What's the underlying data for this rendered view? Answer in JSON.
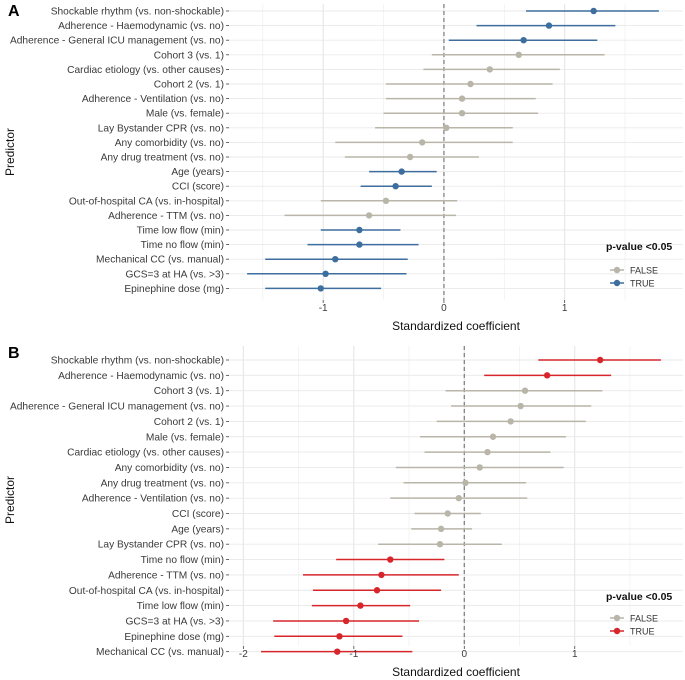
{
  "chart_data": [
    {
      "panel": "A",
      "type": "scatter",
      "subtype": "forest-plot",
      "xlabel": "Standardized coefficient",
      "ylabel": "Predictor",
      "xlim": [
        -1.78,
        1.98
      ],
      "xticks": [
        -1,
        0,
        1
      ],
      "legend": {
        "title": "p-value <0.05",
        "entries": [
          "FALSE",
          "TRUE"
        ],
        "colors": [
          "#b9b5a9",
          "#3d6e9e"
        ],
        "position": "bottom-right"
      },
      "rows": [
        {
          "label": "Shockable rhythm (vs. non-shockable)",
          "est": 1.24,
          "lo": 0.68,
          "hi": 1.78,
          "sig": true
        },
        {
          "label": "Adherence - Haemodynamic (vs. no)",
          "est": 0.87,
          "lo": 0.27,
          "hi": 1.42,
          "sig": true
        },
        {
          "label": "Adherence - General ICU management (vs. no)",
          "est": 0.66,
          "lo": 0.04,
          "hi": 1.27,
          "sig": true
        },
        {
          "label": "Cohort 3 (vs. 1)",
          "est": 0.62,
          "lo": -0.1,
          "hi": 1.33,
          "sig": false
        },
        {
          "label": "Cardiac etiology (vs. other causes)",
          "est": 0.38,
          "lo": -0.17,
          "hi": 0.96,
          "sig": false
        },
        {
          "label": "Cohort 2 (vs. 1)",
          "est": 0.22,
          "lo": -0.48,
          "hi": 0.9,
          "sig": false
        },
        {
          "label": "Adherence - Ventilation (vs. no)",
          "est": 0.15,
          "lo": -0.48,
          "hi": 0.76,
          "sig": false
        },
        {
          "label": "Male (vs. female)",
          "est": 0.15,
          "lo": -0.5,
          "hi": 0.78,
          "sig": false
        },
        {
          "label": "Lay Bystander CPR (vs. no)",
          "est": 0.02,
          "lo": -0.57,
          "hi": 0.57,
          "sig": false
        },
        {
          "label": "Any comorbidity (vs. no)",
          "est": -0.18,
          "lo": -0.9,
          "hi": 0.57,
          "sig": false
        },
        {
          "label": "Any drug treatment (vs. no)",
          "est": -0.28,
          "lo": -0.82,
          "hi": 0.29,
          "sig": false
        },
        {
          "label": "Age (years)",
          "est": -0.35,
          "lo": -0.62,
          "hi": -0.06,
          "sig": true
        },
        {
          "label": "CCI (score)",
          "est": -0.4,
          "lo": -0.69,
          "hi": -0.1,
          "sig": true
        },
        {
          "label": "Out-of-hospital CA (vs. in-hospital)",
          "est": -0.48,
          "lo": -1.02,
          "hi": 0.11,
          "sig": false
        },
        {
          "label": "Adherence - TTM (vs. no)",
          "est": -0.62,
          "lo": -1.32,
          "hi": 0.1,
          "sig": false
        },
        {
          "label": "Time low flow (min)",
          "est": -0.7,
          "lo": -1.02,
          "hi": -0.36,
          "sig": true
        },
        {
          "label": "Time no flow (min)",
          "est": -0.7,
          "lo": -1.13,
          "hi": -0.21,
          "sig": true
        },
        {
          "label": "Mechanical CC (vs. manual)",
          "est": -0.9,
          "lo": -1.48,
          "hi": -0.3,
          "sig": true
        },
        {
          "label": "GCS=3 at HA (vs. >3)",
          "est": -0.98,
          "lo": -1.63,
          "hi": -0.31,
          "sig": true
        },
        {
          "label": "Epinephine dose (mg)",
          "est": -1.02,
          "lo": -1.48,
          "hi": -0.52,
          "sig": true
        }
      ]
    },
    {
      "panel": "B",
      "type": "scatter",
      "subtype": "forest-plot",
      "xlabel": "Standardized coefficient",
      "ylabel": "Predictor",
      "xlim": [
        -2.13,
        1.98
      ],
      "xticks": [
        -2,
        -1,
        0,
        1
      ],
      "legend": {
        "title": "p-value <0.05",
        "entries": [
          "FALSE",
          "TRUE"
        ],
        "colors": [
          "#b9b5a9",
          "#d7262b"
        ],
        "position": "bottom-right"
      },
      "rows": [
        {
          "label": "Shockable rhythm (vs. non-shockable)",
          "est": 1.23,
          "lo": 0.67,
          "hi": 1.78,
          "sig": true
        },
        {
          "label": "Adherence - Haemodynamic (vs. no)",
          "est": 0.75,
          "lo": 0.18,
          "hi": 1.33,
          "sig": true
        },
        {
          "label": "Cohort 3 (vs. 1)",
          "est": 0.55,
          "lo": -0.17,
          "hi": 1.25,
          "sig": false
        },
        {
          "label": "Adherence - General ICU management (vs. no)",
          "est": 0.51,
          "lo": -0.12,
          "hi": 1.15,
          "sig": false
        },
        {
          "label": "Cohort 2 (vs. 1)",
          "est": 0.42,
          "lo": -0.25,
          "hi": 1.1,
          "sig": false
        },
        {
          "label": "Male (vs. female)",
          "est": 0.26,
          "lo": -0.4,
          "hi": 0.92,
          "sig": false
        },
        {
          "label": "Cardiac etiology (vs. other causes)",
          "est": 0.21,
          "lo": -0.36,
          "hi": 0.78,
          "sig": false
        },
        {
          "label": "Any comorbidity (vs. no)",
          "est": 0.14,
          "lo": -0.62,
          "hi": 0.9,
          "sig": false
        },
        {
          "label": "Any drug treatment (vs. no)",
          "est": 0.01,
          "lo": -0.55,
          "hi": 0.56,
          "sig": false
        },
        {
          "label": "Adherence - Ventilation (vs. no)",
          "est": -0.05,
          "lo": -0.67,
          "hi": 0.57,
          "sig": false
        },
        {
          "label": "CCI (score)",
          "est": -0.15,
          "lo": -0.45,
          "hi": 0.15,
          "sig": false
        },
        {
          "label": "Age (years)",
          "est": -0.21,
          "lo": -0.48,
          "hi": 0.07,
          "sig": false
        },
        {
          "label": "Lay Bystander CPR (vs. no)",
          "est": -0.22,
          "lo": -0.78,
          "hi": 0.34,
          "sig": false
        },
        {
          "label": "Time no flow (min)",
          "est": -0.67,
          "lo": -1.16,
          "hi": -0.18,
          "sig": true
        },
        {
          "label": "Adherence - TTM (vs. no)",
          "est": -0.75,
          "lo": -1.46,
          "hi": -0.05,
          "sig": true
        },
        {
          "label": "Out-of-hospital CA (vs. in-hospital)",
          "est": -0.79,
          "lo": -1.37,
          "hi": -0.21,
          "sig": true
        },
        {
          "label": "Time low flow (min)",
          "est": -0.94,
          "lo": -1.38,
          "hi": -0.49,
          "sig": true
        },
        {
          "label": "GCS=3 at HA (vs. >3)",
          "est": -1.07,
          "lo": -1.73,
          "hi": -0.41,
          "sig": true
        },
        {
          "label": "Epinephine dose (mg)",
          "est": -1.13,
          "lo": -1.72,
          "hi": -0.56,
          "sig": true
        },
        {
          "label": "Mechanical CC (vs. manual)",
          "est": -1.15,
          "lo": -1.84,
          "hi": -0.47,
          "sig": true
        }
      ]
    }
  ]
}
